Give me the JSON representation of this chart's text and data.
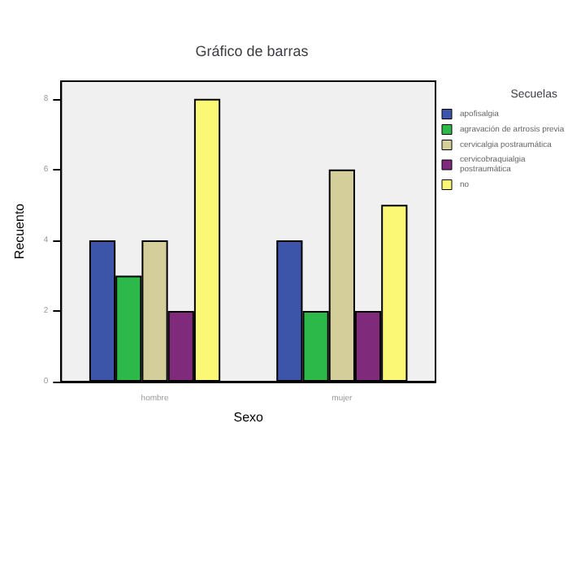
{
  "chart_data": {
    "type": "bar",
    "title": "Gráfico de barras",
    "xlabel": "Sexo",
    "ylabel": "Recuento",
    "legend_title": "Secuelas",
    "categories": [
      "hombre",
      "mujer"
    ],
    "series": [
      {
        "name": "apofisalgia",
        "color": "#3d55a8",
        "values": [
          4,
          4
        ]
      },
      {
        "name": "agravación de artrosis previa",
        "color": "#2db84a",
        "values": [
          3,
          2
        ]
      },
      {
        "name": "cervicalgia postraumática",
        "color": "#d4cf9a",
        "values": [
          4,
          6
        ]
      },
      {
        "name": "cervicobraquialgia postraumática",
        "color": "#7f2a7a",
        "values": [
          2,
          2
        ]
      },
      {
        "name": "no",
        "color": "#fbf875",
        "values": [
          8,
          5
        ]
      }
    ],
    "ylim": [
      0,
      8.5
    ],
    "yticks": [
      0,
      2,
      4,
      6,
      8
    ],
    "grid": false,
    "legend": "right"
  }
}
